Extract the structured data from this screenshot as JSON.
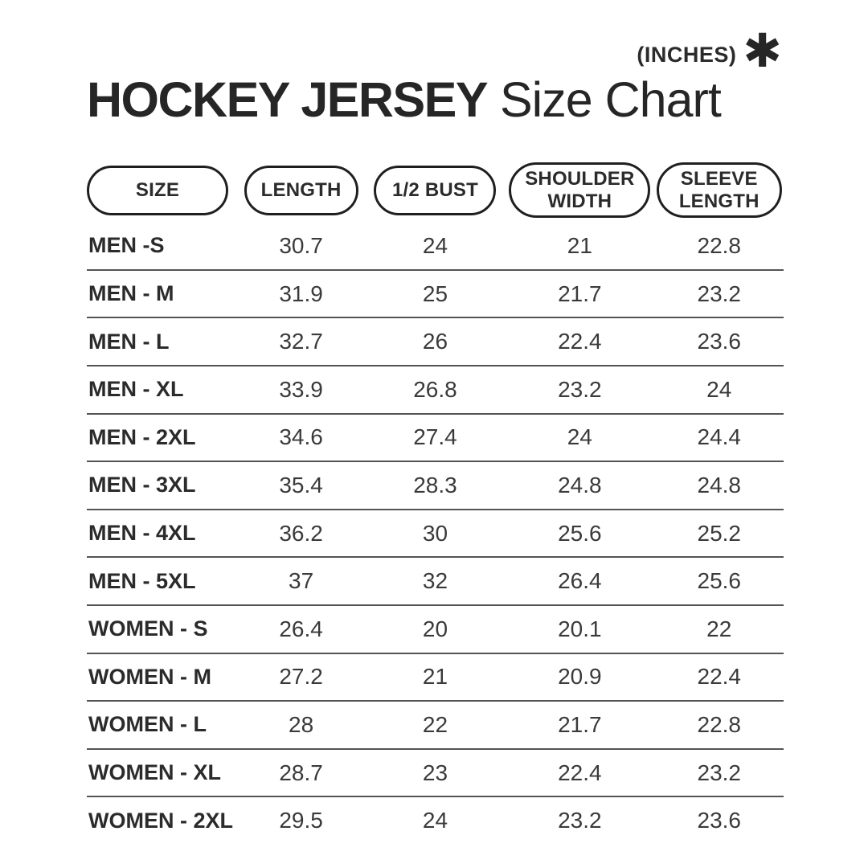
{
  "header": {
    "title_bold": "HOCKEY JERSEY",
    "title_regular": "Size Chart",
    "unit_label": "(INCHES)",
    "asterisk_glyph": "✱"
  },
  "colors": {
    "text": "#2b2b2b",
    "value_text": "#3a3a3a",
    "line": "#545454",
    "pill_border": "#1f1f1f",
    "background": "#ffffff"
  },
  "chart_data": {
    "type": "table",
    "title": "HOCKEY JERSEY Size Chart",
    "unit": "(INCHES)",
    "columns": [
      "SIZE",
      "LENGTH",
      "1/2 BUST",
      "SHOULDER WIDTH",
      "SLEEVE LENGTH"
    ],
    "rows": [
      {
        "label": "MEN -S",
        "values": [
          "30.7",
          "24",
          "21",
          "22.8"
        ]
      },
      {
        "label": "MEN - M",
        "values": [
          "31.9",
          "25",
          "21.7",
          "23.2"
        ]
      },
      {
        "label": "MEN - L",
        "values": [
          "32.7",
          "26",
          "22.4",
          "23.6"
        ]
      },
      {
        "label": "MEN - XL",
        "values": [
          "33.9",
          "26.8",
          "23.2",
          "24"
        ]
      },
      {
        "label": "MEN - 2XL",
        "values": [
          "34.6",
          "27.4",
          "24",
          "24.4"
        ]
      },
      {
        "label": "MEN - 3XL",
        "values": [
          "35.4",
          "28.3",
          "24.8",
          "24.8"
        ]
      },
      {
        "label": "MEN - 4XL",
        "values": [
          "36.2",
          "30",
          "25.6",
          "25.2"
        ]
      },
      {
        "label": "MEN - 5XL",
        "values": [
          "37",
          "32",
          "26.4",
          "25.6"
        ]
      },
      {
        "label": "WOMEN - S",
        "values": [
          "26.4",
          "20",
          "20.1",
          "22"
        ]
      },
      {
        "label": "WOMEN - M",
        "values": [
          "27.2",
          "21",
          "20.9",
          "22.4"
        ]
      },
      {
        "label": "WOMEN - L",
        "values": [
          "28",
          "22",
          "21.7",
          "22.8"
        ]
      },
      {
        "label": "WOMEN - XL",
        "values": [
          "28.7",
          "23",
          "22.4",
          "23.2"
        ]
      },
      {
        "label": "WOMEN - 2XL",
        "values": [
          "29.5",
          "24",
          "23.2",
          "23.6"
        ]
      }
    ]
  }
}
